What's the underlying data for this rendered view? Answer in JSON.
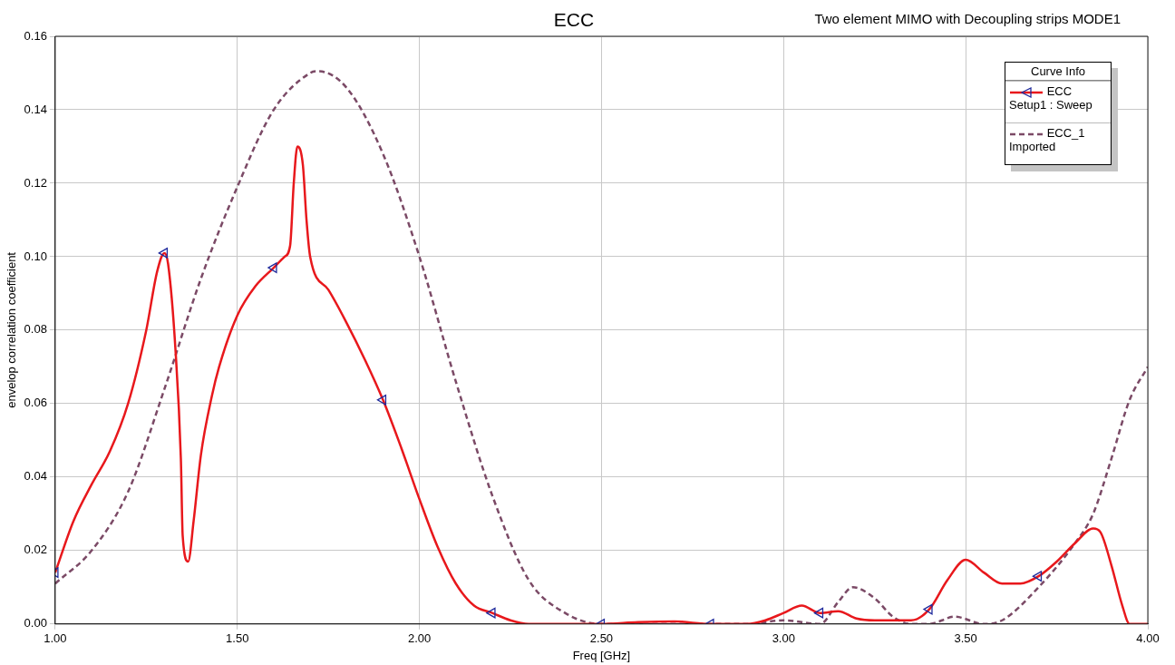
{
  "chart_data": {
    "type": "line",
    "title": "ECC",
    "subtitle": "Two element MIMO with Decoupling strips MODE1",
    "xlabel": "Freq [GHz]",
    "ylabel": "envelop correlation coefficient",
    "legend_title": "Curve Info",
    "annotations": [
      "Setup1 : Sweep",
      "Imported"
    ],
    "legend": "top right",
    "grid": true,
    "xlim": [
      1,
      4
    ],
    "xticks": [
      {
        "value": 1,
        "label": "1.00"
      },
      {
        "value": 1.5,
        "label": "1.50"
      },
      {
        "value": 2,
        "label": "2.00"
      },
      {
        "value": 2.5,
        "label": "2.50"
      },
      {
        "value": 3,
        "label": "3.00"
      },
      {
        "value": 3.5,
        "label": "3.50"
      },
      {
        "value": 4,
        "label": "4.00"
      }
    ],
    "ylim": [
      0,
      0.16
    ],
    "yticks": [
      {
        "value": 0,
        "label": "0.00"
      },
      {
        "value": 0.02,
        "label": "0.02"
      },
      {
        "value": 0.04,
        "label": "0.04"
      },
      {
        "value": 0.06,
        "label": "0.06"
      },
      {
        "value": 0.08,
        "label": "0.08"
      },
      {
        "value": 0.1,
        "label": "0.10"
      },
      {
        "value": 0.12,
        "label": "0.12"
      },
      {
        "value": 0.14,
        "label": "0.14"
      },
      {
        "value": 0.16,
        "label": "0.16"
      }
    ],
    "series": [
      {
        "type": "scatter",
        "color": "#1f2a9c",
        "marker": "triangle",
        "x": [
          1,
          1.3,
          1.6,
          1.9,
          2.2,
          2.5,
          2.8,
          3.1,
          3.4,
          3.7
        ],
        "values": [
          0.014,
          0.101,
          0.097,
          0.061,
          0.003,
          0,
          0,
          0.003,
          0.004,
          0.013
        ]
      },
      {
        "name": "ECC",
        "color": "#e8181c",
        "marker": "none",
        "line_style": "solid",
        "x": [
          1,
          1.05,
          1.1,
          1.15,
          1.2,
          1.25,
          1.28,
          1.3,
          1.31,
          1.33,
          1.345,
          1.35,
          1.365,
          1.38,
          1.4,
          1.43,
          1.45,
          1.5,
          1.55,
          1.6,
          1.63,
          1.645,
          1.655,
          1.665,
          1.68,
          1.69,
          1.7,
          1.75,
          1.8,
          1.85,
          1.9,
          1.95,
          2,
          2.05,
          2.1,
          2.15,
          2.2,
          2.25,
          2.3,
          2.5,
          2.6,
          2.7,
          2.8,
          2.9,
          2.95,
          3,
          3.05,
          3.1,
          3.15,
          3.2,
          3.25,
          3.35,
          3.4,
          3.45,
          3.5,
          3.55,
          3.6,
          3.65,
          3.7,
          3.75,
          3.8,
          3.85,
          3.87,
          3.9,
          3.93,
          3.95,
          4
        ],
        "values": [
          0.014,
          0.028,
          0.038,
          0.047,
          0.06,
          0.08,
          0.096,
          0.101,
          0.098,
          0.075,
          0.045,
          0.024,
          0.017,
          0.028,
          0.046,
          0.062,
          0.07,
          0.084,
          0.092,
          0.097,
          0.1,
          0.103,
          0.12,
          0.13,
          0.125,
          0.11,
          0.1,
          0.091,
          0.082,
          0.072,
          0.061,
          0.048,
          0.034,
          0.021,
          0.011,
          0.005,
          0.003,
          0.001,
          0,
          0,
          0.0005,
          0.0007,
          0,
          0,
          0.001,
          0.003,
          0.005,
          0.003,
          0.0035,
          0.0015,
          0.001,
          0.001,
          0.004,
          0.012,
          0.0175,
          0.014,
          0.011,
          0.011,
          0.013,
          0.017,
          0.022,
          0.026,
          0.025,
          0.016,
          0.005,
          0,
          0
        ]
      },
      {
        "name": "ECC_1",
        "color": "#7b4a66",
        "marker": "none",
        "line_style": "dashed",
        "x": [
          1,
          1.1,
          1.2,
          1.3,
          1.4,
          1.5,
          1.6,
          1.7,
          1.72,
          1.8,
          1.9,
          2,
          2.1,
          2.2,
          2.3,
          2.4,
          2.5,
          2.6,
          2.7,
          2.9,
          3,
          3.1,
          3.15,
          3.19,
          3.25,
          3.3,
          3.35,
          3.4,
          3.47,
          3.55,
          3.6,
          3.7,
          3.8,
          3.85,
          3.9,
          3.95,
          4
        ],
        "values": [
          0.011,
          0.02,
          0.036,
          0.064,
          0.094,
          0.119,
          0.14,
          0.15,
          0.1505,
          0.146,
          0.128,
          0.1,
          0.066,
          0.035,
          0.012,
          0.003,
          0,
          0,
          0,
          0,
          0.001,
          0,
          0.006,
          0.01,
          0.007,
          0.002,
          0,
          0,
          0.002,
          0,
          0.001,
          0.01,
          0.022,
          0.03,
          0.045,
          0.061,
          0.07
        ]
      }
    ]
  }
}
